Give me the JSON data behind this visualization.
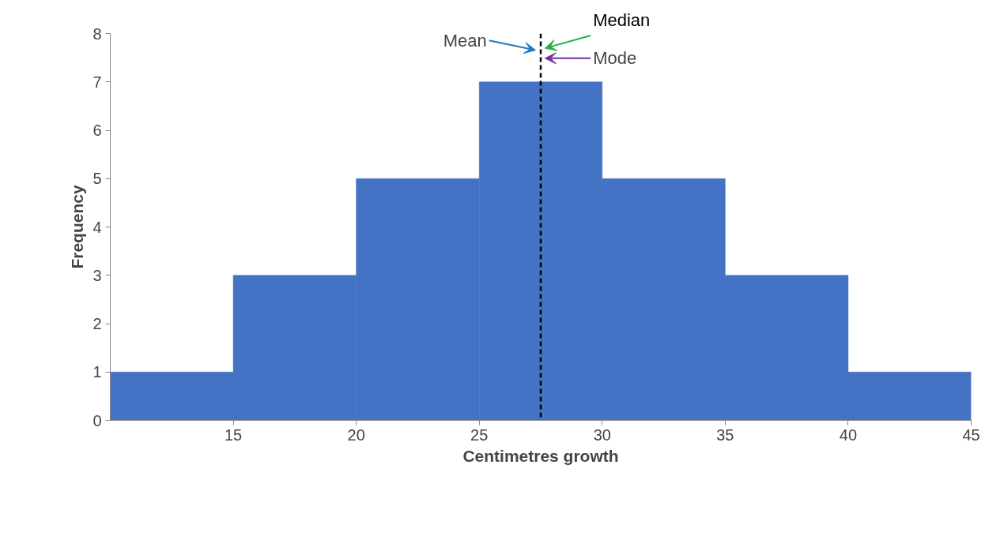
{
  "chart_data": {
    "type": "histogram",
    "xlabel": "Centimetres growth",
    "ylabel": "Frequency",
    "bins": [
      10,
      15,
      20,
      25,
      30,
      35,
      40,
      45
    ],
    "values": [
      1,
      3,
      5,
      7,
      5,
      3,
      1
    ],
    "color": "#4472c4",
    "xlim": [
      10,
      45
    ],
    "xticks": [
      15,
      20,
      25,
      30,
      35,
      40,
      45
    ],
    "ylim": [
      0,
      8
    ],
    "yticks": [
      0,
      1,
      2,
      3,
      4,
      5,
      6,
      7,
      8
    ],
    "grid": false,
    "legend": false,
    "ref_lines": [
      {
        "axis": "x",
        "value": 27.5,
        "color": "#000000",
        "line_style": "dashed"
      }
    ],
    "annotations": [
      "Mean",
      "Median",
      "Mode"
    ]
  }
}
